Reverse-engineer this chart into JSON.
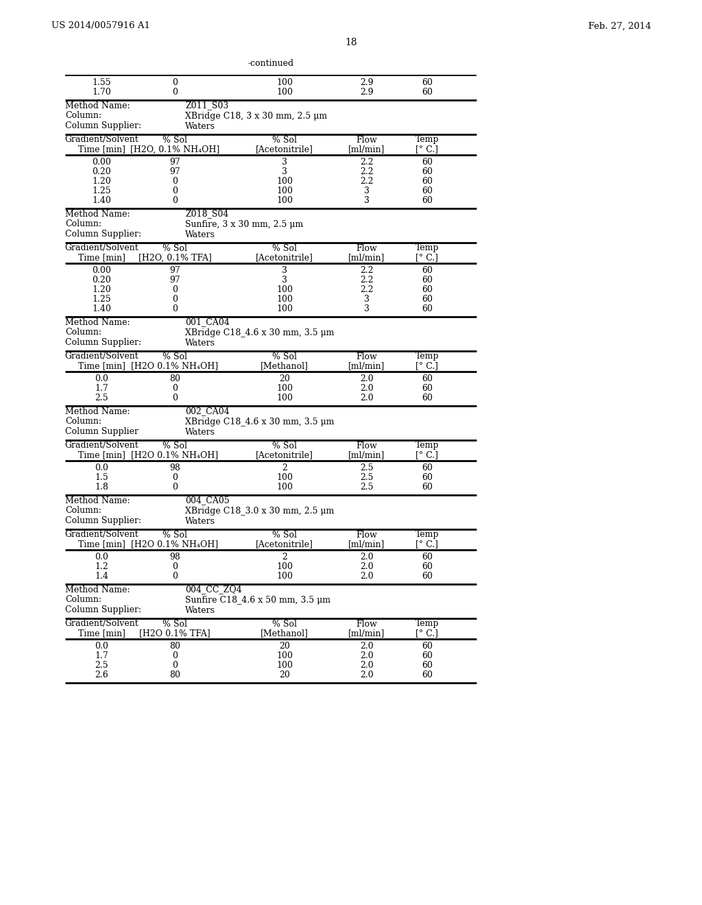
{
  "header_left": "US 2014/0057916 A1",
  "header_right": "Feb. 27, 2014",
  "page_number": "18",
  "continued_label": "-continued",
  "background_color": "#ffffff",
  "text_color": "#000000",
  "font_size": 9.0,
  "sections": [
    {
      "type": "data_rows",
      "rows": [
        [
          "1.55",
          "0",
          "100",
          "2.9",
          "60"
        ],
        [
          "1.70",
          "0",
          "100",
          "2.9",
          "60"
        ]
      ]
    },
    {
      "type": "method_info",
      "name": "Z011_S03",
      "column": "XBridge C18, 3 x 30 mm, 2.5 μm",
      "supplier": "Waters",
      "supplier_colon": true
    },
    {
      "type": "gradient_header",
      "col1": "Gradient/Solvent\nTime [min]",
      "col2": "% Sol\n[H2O, 0.1% NH₄OH]",
      "col3": "% Sol\n[Acetonitrile]",
      "col4": "Flow\n[ml/min]",
      "col5": "Temp\n[° C.]"
    },
    {
      "type": "data_rows",
      "rows": [
        [
          "0.00",
          "97",
          "3",
          "2.2",
          "60"
        ],
        [
          "0.20",
          "97",
          "3",
          "2.2",
          "60"
        ],
        [
          "1.20",
          "0",
          "100",
          "2.2",
          "60"
        ],
        [
          "1.25",
          "0",
          "100",
          "3",
          "60"
        ],
        [
          "1.40",
          "0",
          "100",
          "3",
          "60"
        ]
      ]
    },
    {
      "type": "method_info",
      "name": "Z018_S04",
      "column": "Sunfire, 3 x 30 mm, 2.5 μm",
      "supplier": "Waters",
      "supplier_colon": true
    },
    {
      "type": "gradient_header",
      "col1": "Gradient/Solvent\nTime [min]",
      "col2": "% Sol\n[H2O, 0.1% TFA]",
      "col3": "% Sol\n[Acetonitrile]",
      "col4": "Flow\n[ml/min]",
      "col5": "Temp\n[° C.]"
    },
    {
      "type": "data_rows",
      "rows": [
        [
          "0.00",
          "97",
          "3",
          "2.2",
          "60"
        ],
        [
          "0.20",
          "97",
          "3",
          "2.2",
          "60"
        ],
        [
          "1.20",
          "0",
          "100",
          "2.2",
          "60"
        ],
        [
          "1.25",
          "0",
          "100",
          "3",
          "60"
        ],
        [
          "1.40",
          "0",
          "100",
          "3",
          "60"
        ]
      ]
    },
    {
      "type": "method_info",
      "name": "001_CA04",
      "column": "XBridge C18_4.6 x 30 mm, 3.5 μm",
      "supplier": "Waters",
      "supplier_colon": true
    },
    {
      "type": "gradient_header",
      "col1": "Gradient/Solvent\nTime [min]",
      "col2": "% Sol\n[H2O 0.1% NH₄OH]",
      "col3": "% Sol\n[Methanol]",
      "col4": "Flow\n[ml/min]",
      "col5": "Temp\n[° C.]"
    },
    {
      "type": "data_rows",
      "rows": [
        [
          "0.0",
          "80",
          "20",
          "2.0",
          "60"
        ],
        [
          "1.7",
          "0",
          "100",
          "2.0",
          "60"
        ],
        [
          "2.5",
          "0",
          "100",
          "2.0",
          "60"
        ]
      ]
    },
    {
      "type": "method_info",
      "name": "002_CA04",
      "column": "XBridge C18_4.6 x 30 mm, 3.5 μm",
      "supplier": "Waters",
      "supplier_colon": false
    },
    {
      "type": "gradient_header",
      "col1": "Gradient/Solvent\nTime [min]",
      "col2": "% Sol\n[H2O 0.1% NH₄OH]",
      "col3": "% Sol\n[Acetonitrile]",
      "col4": "Flow\n[ml/min]",
      "col5": "Temp\n[° C.]"
    },
    {
      "type": "data_rows",
      "rows": [
        [
          "0.0",
          "98",
          "2",
          "2.5",
          "60"
        ],
        [
          "1.5",
          "0",
          "100",
          "2.5",
          "60"
        ],
        [
          "1.8",
          "0",
          "100",
          "2.5",
          "60"
        ]
      ]
    },
    {
      "type": "method_info",
      "name": "004_CA05",
      "column": "XBridge C18_3.0 x 30 mm, 2.5 μm",
      "supplier": "Waters",
      "supplier_colon": true
    },
    {
      "type": "gradient_header",
      "col1": "Gradient/Solvent\nTime [min]",
      "col2": "% Sol\n[H2O 0.1% NH₄OH]",
      "col3": "% Sol\n[Acetonitrile]",
      "col4": "Flow\n[ml/min]",
      "col5": "Temp\n[° C.]"
    },
    {
      "type": "data_rows",
      "rows": [
        [
          "0.0",
          "98",
          "2",
          "2.0",
          "60"
        ],
        [
          "1.2",
          "0",
          "100",
          "2.0",
          "60"
        ],
        [
          "1.4",
          "0",
          "100",
          "2.0",
          "60"
        ]
      ]
    },
    {
      "type": "method_info",
      "name": "004_CC_ZQ4",
      "column": "Sunfire C18_4.6 x 50 mm, 3.5 μm",
      "supplier": "Waters",
      "supplier_colon": true
    },
    {
      "type": "gradient_header",
      "col1": "Gradient/Solvent\nTime [min]",
      "col2": "% Sol\n[H2O 0.1% TFA]",
      "col3": "% Sol\n[Methanol]",
      "col4": "Flow\n[ml/min]",
      "col5": "Temp\n[° C.]"
    },
    {
      "type": "data_rows_final",
      "rows": [
        [
          "0.0",
          "80",
          "20",
          "2.0",
          "60"
        ],
        [
          "1.7",
          "0",
          "100",
          "2.0",
          "60"
        ],
        [
          "2.5",
          "0",
          "100",
          "2.0",
          "60"
        ],
        [
          "2.6",
          "80",
          "20",
          "2.0",
          "60"
        ]
      ]
    }
  ]
}
